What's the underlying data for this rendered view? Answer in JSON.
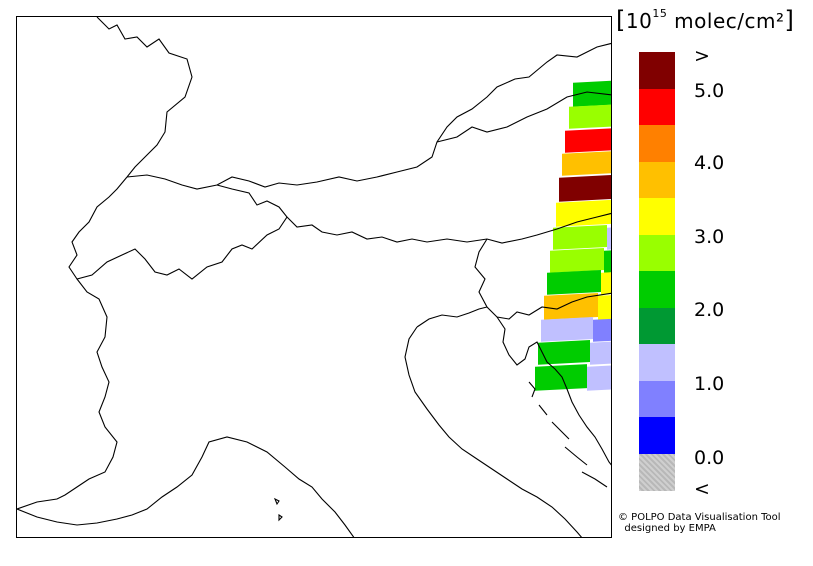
{
  "legend": {
    "unit_open": "[",
    "unit_base": "10",
    "unit_exp": "15",
    "unit_text": " molec/cm²",
    "unit_close": "]",
    "colors": [
      "#800000",
      "#ff0000",
      "#ff8000",
      "#ffc000",
      "#ffff00",
      "#99ff00",
      "#00cc00",
      "#009933",
      "#c0c0ff",
      "#8080ff",
      "#0000ff",
      "#c8c8c8"
    ],
    "labels": [
      ">",
      "5.0",
      "4.0",
      "3.0",
      "2.0",
      "1.0",
      "0.0",
      "<"
    ]
  },
  "credits": {
    "line1": "© POLPO Data Visualisation Tool",
    "line2": "designed by EMPA"
  },
  "map": {
    "border_color": "#000000",
    "swath_levels": [
      "2.0-2.5",
      "2.5-3.0",
      "5.0+",
      "3.5-4.0",
      ">5",
      "3.0-3.5",
      "2.5-3.0",
      "2.5-3.0",
      "2.0-2.5",
      "3.5-4.0",
      "1.0-1.5",
      "2.0-2.5",
      "2.0-2.5"
    ]
  }
}
